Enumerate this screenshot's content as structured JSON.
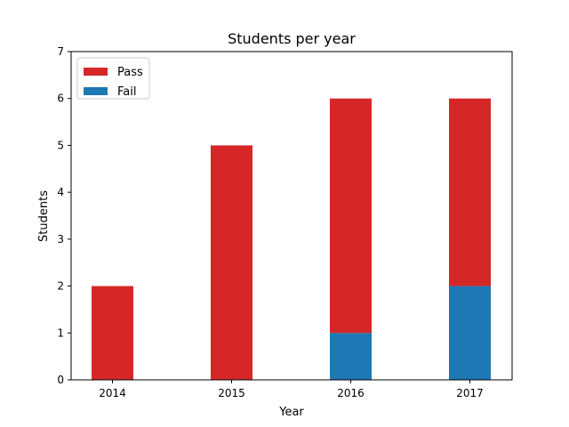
{
  "chart_data": {
    "type": "bar",
    "stacked": true,
    "title": "Students per year",
    "xlabel": "Year",
    "ylabel": "Students",
    "categories": [
      "2014",
      "2015",
      "2016",
      "2017"
    ],
    "ylim": [
      0,
      7
    ],
    "yticks": [
      "0",
      "1",
      "2",
      "3",
      "4",
      "5",
      "6",
      "7"
    ],
    "series": [
      {
        "name": "Fail",
        "color": "#1f77b4",
        "values": [
          0,
          0,
          1,
          2
        ]
      },
      {
        "name": "Pass",
        "color": "#d62728",
        "values": [
          2,
          5,
          5,
          4
        ]
      }
    ],
    "legend": {
      "position": "top-left",
      "entries": [
        {
          "name": "Pass",
          "color": "#d62728"
        },
        {
          "name": "Fail",
          "color": "#1f77b4"
        }
      ]
    },
    "grid": false
  }
}
